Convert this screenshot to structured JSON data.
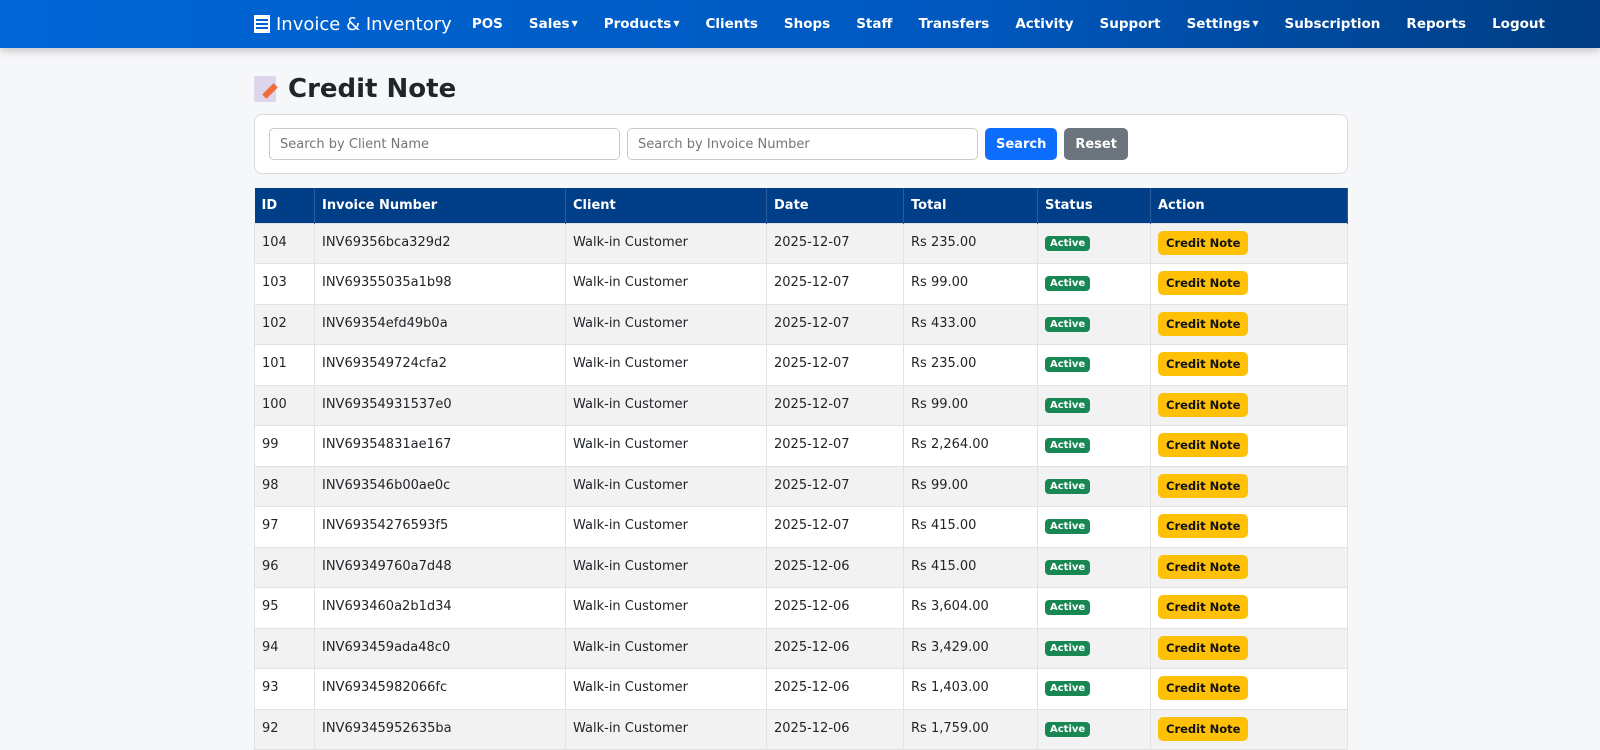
{
  "nav": {
    "brand": "Invoice & Inventory",
    "items": [
      {
        "label": "POS",
        "dropdown": false
      },
      {
        "label": "Sales",
        "dropdown": true
      },
      {
        "label": "Products",
        "dropdown": true
      },
      {
        "label": "Clients",
        "dropdown": false
      },
      {
        "label": "Shops",
        "dropdown": false
      },
      {
        "label": "Staff",
        "dropdown": false
      },
      {
        "label": "Transfers",
        "dropdown": false
      },
      {
        "label": "Activity",
        "dropdown": false
      },
      {
        "label": "Support",
        "dropdown": false
      },
      {
        "label": "Settings",
        "dropdown": true
      },
      {
        "label": "Subscription",
        "dropdown": false
      },
      {
        "label": "Reports",
        "dropdown": false
      },
      {
        "label": "Logout",
        "dropdown": false
      }
    ]
  },
  "page": {
    "title": "Credit Note"
  },
  "search": {
    "client_placeholder": "Search by Client Name",
    "invoice_placeholder": "Search by Invoice Number",
    "search_label": "Search",
    "reset_label": "Reset"
  },
  "table": {
    "headers": [
      "ID",
      "Invoice Number",
      "Client",
      "Date",
      "Total",
      "Status",
      "Action"
    ],
    "action_label": "Credit Note",
    "rows": [
      [
        "104",
        "INV69356bca329d2",
        "Walk-in Customer",
        "2025-12-07",
        "Rs 235.00",
        "Active"
      ],
      [
        "103",
        "INV69355035a1b98",
        "Walk-in Customer",
        "2025-12-07",
        "Rs 99.00",
        "Active"
      ],
      [
        "102",
        "INV69354efd49b0a",
        "Walk-in Customer",
        "2025-12-07",
        "Rs 433.00",
        "Active"
      ],
      [
        "101",
        "INV693549724cfa2",
        "Walk-in Customer",
        "2025-12-07",
        "Rs 235.00",
        "Active"
      ],
      [
        "100",
        "INV69354931537e0",
        "Walk-in Customer",
        "2025-12-07",
        "Rs 99.00",
        "Active"
      ],
      [
        "99",
        "INV69354831ae167",
        "Walk-in Customer",
        "2025-12-07",
        "Rs 2,264.00",
        "Active"
      ],
      [
        "98",
        "INV693546b00ae0c",
        "Walk-in Customer",
        "2025-12-07",
        "Rs 99.00",
        "Active"
      ],
      [
        "97",
        "INV69354276593f5",
        "Walk-in Customer",
        "2025-12-07",
        "Rs 415.00",
        "Active"
      ],
      [
        "96",
        "INV69349760a7d48",
        "Walk-in Customer",
        "2025-12-06",
        "Rs 415.00",
        "Active"
      ],
      [
        "95",
        "INV693460a2b1d34",
        "Walk-in Customer",
        "2025-12-06",
        "Rs 3,604.00",
        "Active"
      ],
      [
        "94",
        "INV693459ada48c0",
        "Walk-in Customer",
        "2025-12-06",
        "Rs 3,429.00",
        "Active"
      ],
      [
        "93",
        "INV69345982066fc",
        "Walk-in Customer",
        "2025-12-06",
        "Rs 1,403.00",
        "Active"
      ],
      [
        "92",
        "INV69345952635ba",
        "Walk-in Customer",
        "2025-12-06",
        "Rs 1,759.00",
        "Active"
      ]
    ]
  }
}
